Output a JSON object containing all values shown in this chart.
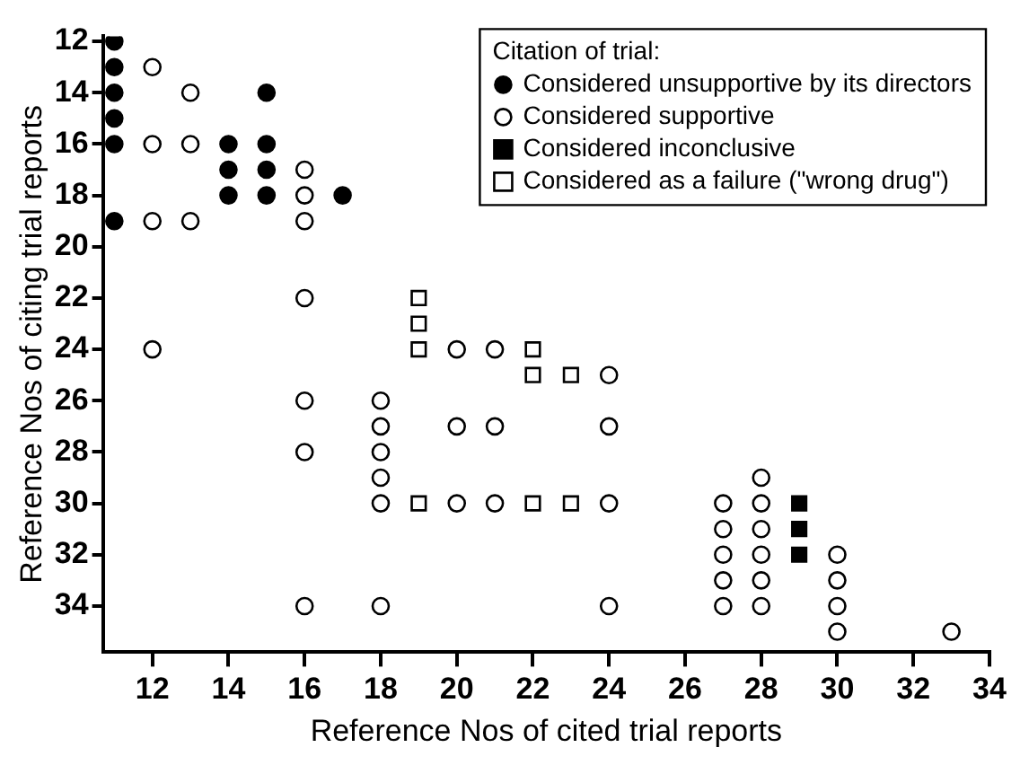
{
  "chart_data": {
    "type": "scatter",
    "xlabel": "Reference Nos of cited trial reports",
    "ylabel": "Reference Nos of citing trial reports",
    "legend_title": "Citation of trial:",
    "legend": "top right",
    "grid": false,
    "xlim": [
      10.7,
      34
    ],
    "xticks": [
      12,
      14,
      16,
      18,
      20,
      22,
      24,
      26,
      28,
      30,
      32,
      34
    ],
    "ylim": [
      35.8,
      11.8
    ],
    "yticks": [
      12,
      14,
      16,
      18,
      20,
      22,
      24,
      26,
      28,
      30,
      32,
      34
    ],
    "series": [
      {
        "name": "Considered unsupportive by its directors",
        "color": "#000000",
        "marker": "circle",
        "x": [
          11,
          11,
          11,
          11,
          11,
          11,
          14,
          14,
          14,
          15,
          15,
          15,
          15,
          17
        ],
        "values": [
          12,
          13,
          14,
          15,
          16,
          19,
          16,
          17,
          18,
          14,
          16,
          17,
          18,
          18
        ]
      },
      {
        "name": "Considered supportive",
        "color": "#ffffff",
        "marker": "circle",
        "x": [
          12,
          12,
          12,
          12,
          13,
          13,
          13,
          16,
          16,
          16,
          16,
          16,
          16,
          16,
          18,
          18,
          18,
          18,
          18,
          18,
          20,
          20,
          20,
          21,
          21,
          21,
          24,
          24,
          24,
          24,
          27,
          27,
          27,
          27,
          27,
          28,
          28,
          28,
          28,
          28,
          28,
          30,
          30,
          30,
          30,
          33
        ],
        "values": [
          13,
          16,
          19,
          24,
          14,
          16,
          19,
          17,
          18,
          19,
          22,
          26,
          28,
          34,
          26,
          27,
          28,
          29,
          30,
          34,
          24,
          27,
          30,
          24,
          27,
          30,
          25,
          27,
          30,
          34,
          30,
          31,
          32,
          33,
          34,
          29,
          30,
          31,
          32,
          33,
          34,
          32,
          33,
          34,
          35,
          35
        ]
      },
      {
        "name": "Considered inconclusive",
        "color": "#000000",
        "marker": "square",
        "x": [
          29,
          29,
          29
        ],
        "values": [
          30,
          31,
          32
        ]
      },
      {
        "name": "Considered as a failure (\"wrong drug\")",
        "color": "#ffffff",
        "marker": "square",
        "x": [
          19,
          19,
          19,
          22,
          22,
          23,
          19,
          22,
          23
        ],
        "values": [
          22,
          23,
          24,
          24,
          25,
          25,
          30,
          30,
          30
        ]
      }
    ]
  }
}
